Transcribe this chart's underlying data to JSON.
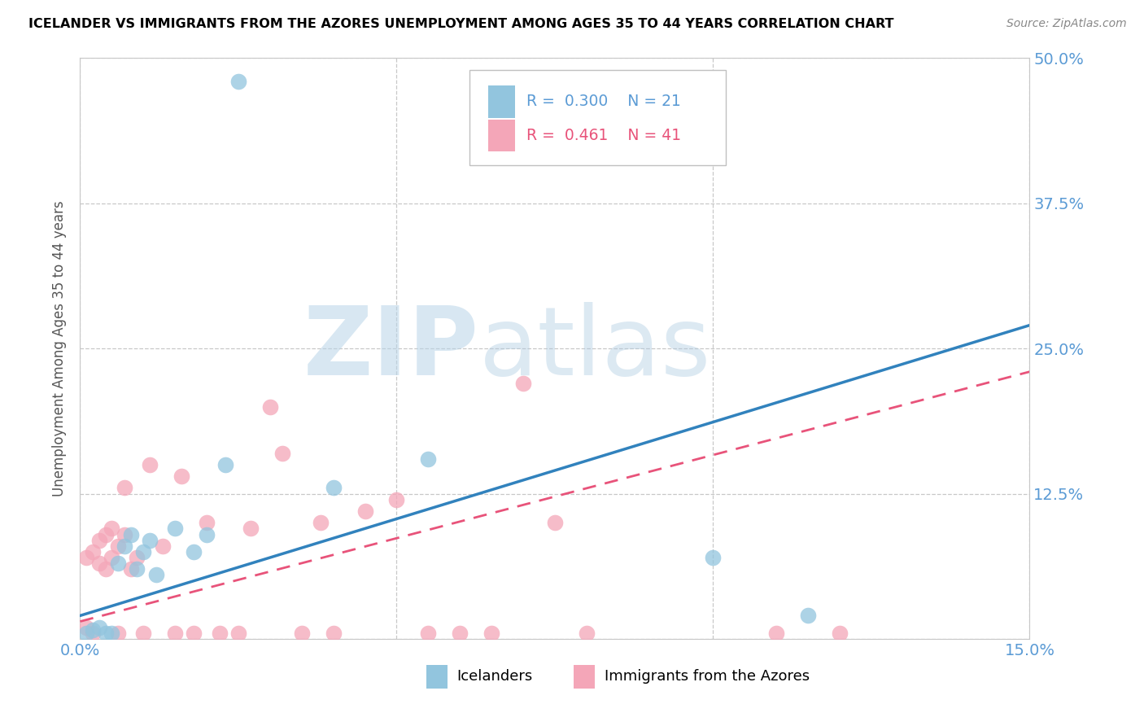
{
  "title": "ICELANDER VS IMMIGRANTS FROM THE AZORES UNEMPLOYMENT AMONG AGES 35 TO 44 YEARS CORRELATION CHART",
  "source": "Source: ZipAtlas.com",
  "ylabel": "Unemployment Among Ages 35 to 44 years",
  "xlim": [
    0.0,
    0.15
  ],
  "ylim": [
    0.0,
    0.5
  ],
  "yticks": [
    0.0,
    0.125,
    0.25,
    0.375,
    0.5
  ],
  "ytick_labels": [
    "",
    "12.5%",
    "25.0%",
    "37.5%",
    "50.0%"
  ],
  "xtick_positions": [
    0.0,
    0.05,
    0.1,
    0.15
  ],
  "xtick_labels": [
    "0.0%",
    "",
    "",
    "15.0%"
  ],
  "blue_R": 0.3,
  "blue_N": 21,
  "pink_R": 0.461,
  "pink_N": 41,
  "blue_color": "#92c5de",
  "pink_color": "#f4a6b8",
  "blue_line_color": "#3182bd",
  "pink_line_color": "#e8537a",
  "legend_label_blue": "Icelanders",
  "legend_label_pink": "Immigrants from the Azores",
  "watermark_zip": "ZIP",
  "watermark_atlas": "atlas",
  "blue_x": [
    0.001,
    0.002,
    0.003,
    0.004,
    0.005,
    0.006,
    0.007,
    0.008,
    0.009,
    0.01,
    0.011,
    0.012,
    0.015,
    0.018,
    0.02,
    0.023,
    0.025,
    0.04,
    0.055,
    0.1,
    0.115
  ],
  "blue_y": [
    0.005,
    0.008,
    0.01,
    0.005,
    0.005,
    0.065,
    0.08,
    0.09,
    0.06,
    0.075,
    0.085,
    0.055,
    0.095,
    0.075,
    0.09,
    0.15,
    0.48,
    0.13,
    0.155,
    0.07,
    0.02
  ],
  "pink_x": [
    0.001,
    0.001,
    0.002,
    0.002,
    0.003,
    0.003,
    0.004,
    0.004,
    0.005,
    0.005,
    0.006,
    0.006,
    0.007,
    0.007,
    0.008,
    0.009,
    0.01,
    0.011,
    0.013,
    0.015,
    0.016,
    0.018,
    0.02,
    0.022,
    0.025,
    0.027,
    0.03,
    0.032,
    0.035,
    0.038,
    0.04,
    0.045,
    0.05,
    0.055,
    0.06,
    0.065,
    0.07,
    0.075,
    0.08,
    0.11,
    0.12
  ],
  "pink_y": [
    0.01,
    0.07,
    0.005,
    0.075,
    0.065,
    0.085,
    0.09,
    0.06,
    0.07,
    0.095,
    0.005,
    0.08,
    0.09,
    0.13,
    0.06,
    0.07,
    0.005,
    0.15,
    0.08,
    0.005,
    0.14,
    0.005,
    0.1,
    0.005,
    0.005,
    0.095,
    0.2,
    0.16,
    0.005,
    0.1,
    0.005,
    0.11,
    0.12,
    0.005,
    0.005,
    0.005,
    0.22,
    0.1,
    0.005,
    0.005,
    0.005
  ],
  "blue_line_x0": 0.0,
  "blue_line_y0": 0.02,
  "blue_line_x1": 0.15,
  "blue_line_y1": 0.27,
  "pink_line_x0": 0.0,
  "pink_line_y0": 0.015,
  "pink_line_x1": 0.15,
  "pink_line_y1": 0.23
}
